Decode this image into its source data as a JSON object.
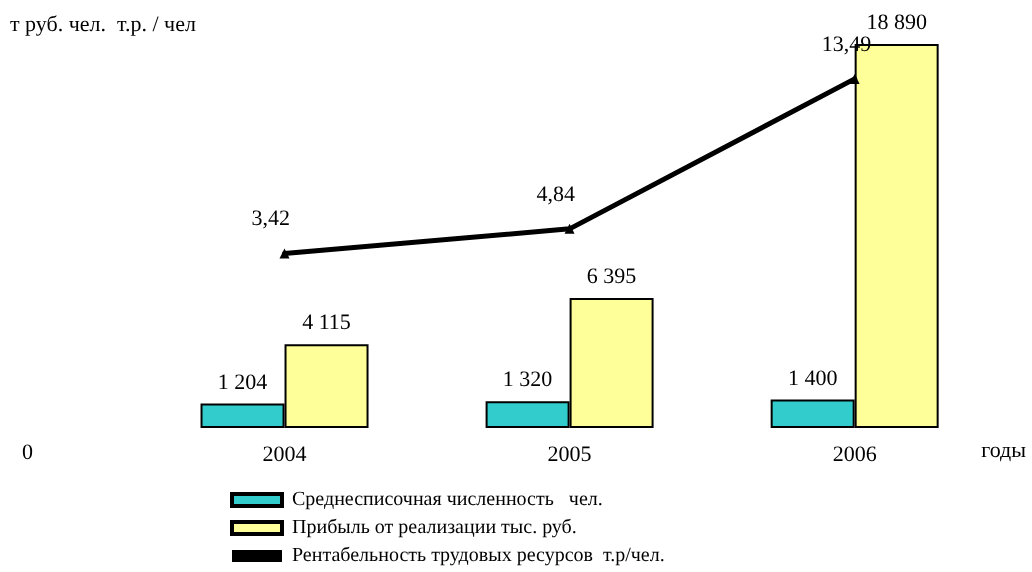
{
  "chart_data": {
    "type": "bar",
    "ylabel": "т руб. чел.  т.р. / чел",
    "xlabel": "годы",
    "annotations": [
      "0"
    ],
    "categories": [
      "2004",
      "2005",
      "2006"
    ],
    "series": [
      {
        "name": "Среднесписочная численность   чел.",
        "color": "#33cccc",
        "values": [
          1204,
          1320,
          1400
        ],
        "value_labels": [
          "1 204",
          "1 320",
          "1 400"
        ]
      },
      {
        "name": "Прибыль от реализации тыс. руб.",
        "color": "#ffff99",
        "values": [
          4115,
          6395,
          18890
        ],
        "value_labels": [
          "4 115",
          "6 395",
          "18 890"
        ]
      },
      {
        "name": "Рентабельность трудовых ресурсов  т.р/чел.",
        "type": "line",
        "axis": "y2",
        "color": "#000000",
        "values": [
          3.42,
          4.84,
          13.49
        ],
        "value_labels": [
          "3,42",
          "4,84",
          "13,49"
        ]
      }
    ],
    "tick_labels": "x",
    "legend": "bottom",
    "marker": "triangle",
    "grid": false
  }
}
